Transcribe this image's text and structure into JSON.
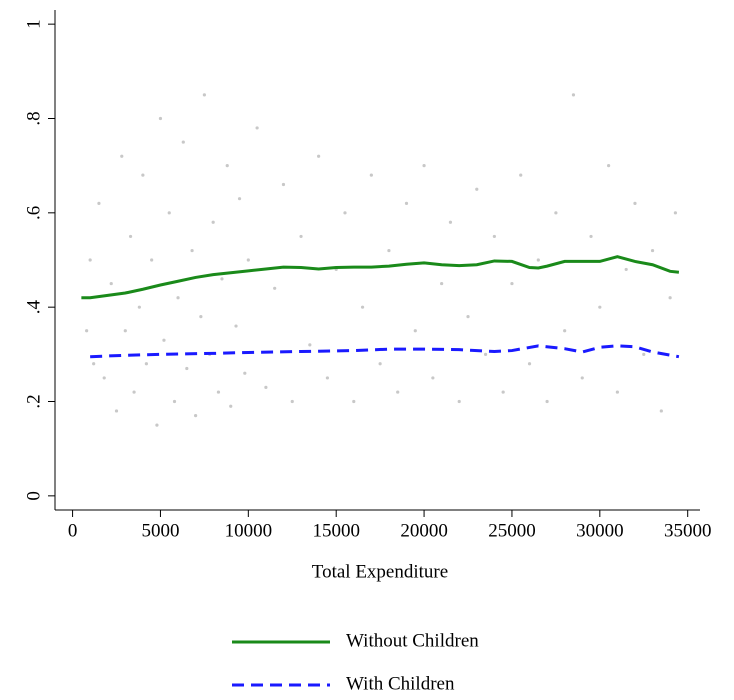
{
  "chart_data": {
    "type": "scatter",
    "x_label": "Total Expenditure",
    "xlim": [
      -1000,
      35700
    ],
    "ylim": [
      -0.03,
      1.03
    ],
    "xticks": [
      0,
      5000,
      10000,
      15000,
      20000,
      25000,
      30000,
      35000
    ],
    "yticks": [
      0,
      {
        "value": 0.2,
        "label": ".2"
      },
      {
        "value": 0.4,
        "label": ".4"
      },
      {
        "value": 0.6,
        "label": ".6"
      },
      {
        "value": 0.8,
        "label": ".8"
      },
      1
    ],
    "points": {
      "color": "#c8c8c8",
      "x": [
        800,
        1000,
        1200,
        1500,
        1800,
        2200,
        2500,
        2800,
        3000,
        3300,
        3500,
        3800,
        4000,
        4200,
        4500,
        4800,
        5000,
        5200,
        5500,
        5800,
        6000,
        6300,
        6500,
        6800,
        7000,
        7300,
        7500,
        7800,
        8000,
        8300,
        8500,
        8800,
        9000,
        9300,
        9500,
        9800,
        10000,
        10500,
        11000,
        11500,
        12000,
        12500,
        13000,
        13500,
        14000,
        14500,
        15000,
        15500,
        16000,
        16500,
        17000,
        17500,
        18000,
        18500,
        19000,
        19500,
        20000,
        20500,
        21000,
        21500,
        22000,
        22500,
        23000,
        23500,
        24000,
        24500,
        25000,
        25500,
        26000,
        26500,
        27000,
        27500,
        28000,
        28500,
        29000,
        29500,
        30000,
        30500,
        31000,
        31500,
        32000,
        32500,
        33000,
        33500,
        34000,
        34300
      ],
      "values": [
        0.35,
        0.5,
        0.28,
        0.62,
        0.25,
        0.45,
        0.18,
        0.72,
        0.35,
        0.55,
        0.22,
        0.4,
        0.68,
        0.28,
        0.5,
        0.15,
        0.8,
        0.33,
        0.6,
        0.2,
        0.42,
        0.75,
        0.27,
        0.52,
        0.17,
        0.38,
        0.85,
        0.3,
        0.58,
        0.22,
        0.46,
        0.7,
        0.19,
        0.36,
        0.63,
        0.26,
        0.5,
        0.78,
        0.23,
        0.44,
        0.66,
        0.2,
        0.55,
        0.32,
        0.72,
        0.25,
        0.48,
        0.6,
        0.2,
        0.4,
        0.68,
        0.28,
        0.52,
        0.22,
        0.62,
        0.35,
        0.7,
        0.25,
        0.45,
        0.58,
        0.2,
        0.38,
        0.65,
        0.3,
        0.55,
        0.22,
        0.45,
        0.68,
        0.28,
        0.5,
        0.2,
        0.6,
        0.35,
        0.85,
        0.25,
        0.55,
        0.4,
        0.7,
        0.22,
        0.48,
        0.62,
        0.3,
        0.52,
        0.18,
        0.42,
        0.6
      ]
    },
    "series": [
      {
        "name": "Without Children",
        "color": "#1a8a1a",
        "dashed": false,
        "x": [
          500,
          1000,
          2000,
          3000,
          4000,
          5000,
          6000,
          7000,
          8000,
          9000,
          10000,
          11000,
          12000,
          13000,
          14000,
          15000,
          16000,
          17000,
          18000,
          19000,
          20000,
          21000,
          22000,
          23000,
          24000,
          25000,
          26000,
          26500,
          27000,
          28000,
          29000,
          30000,
          31000,
          32000,
          33000,
          34000,
          34500
        ],
        "values": [
          0.42,
          0.42,
          0.425,
          0.43,
          0.438,
          0.447,
          0.455,
          0.463,
          0.469,
          0.473,
          0.477,
          0.481,
          0.485,
          0.484,
          0.481,
          0.484,
          0.485,
          0.485,
          0.487,
          0.491,
          0.494,
          0.49,
          0.488,
          0.49,
          0.498,
          0.497,
          0.484,
          0.483,
          0.487,
          0.497,
          0.497,
          0.497,
          0.507,
          0.497,
          0.49,
          0.476,
          0.474
        ]
      },
      {
        "name": "With Children",
        "color": "#1a1aff",
        "dashed": true,
        "x": [
          1000,
          3000,
          5000,
          8000,
          10000,
          13000,
          16000,
          18000,
          20000,
          22000,
          24000,
          25000,
          26500,
          28000,
          29000,
          30000,
          31000,
          32000,
          33000,
          34500
        ],
        "values": [
          0.295,
          0.298,
          0.3,
          0.302,
          0.304,
          0.306,
          0.308,
          0.311,
          0.311,
          0.31,
          0.306,
          0.308,
          0.318,
          0.312,
          0.305,
          0.315,
          0.318,
          0.316,
          0.305,
          0.295
        ]
      }
    ]
  }
}
